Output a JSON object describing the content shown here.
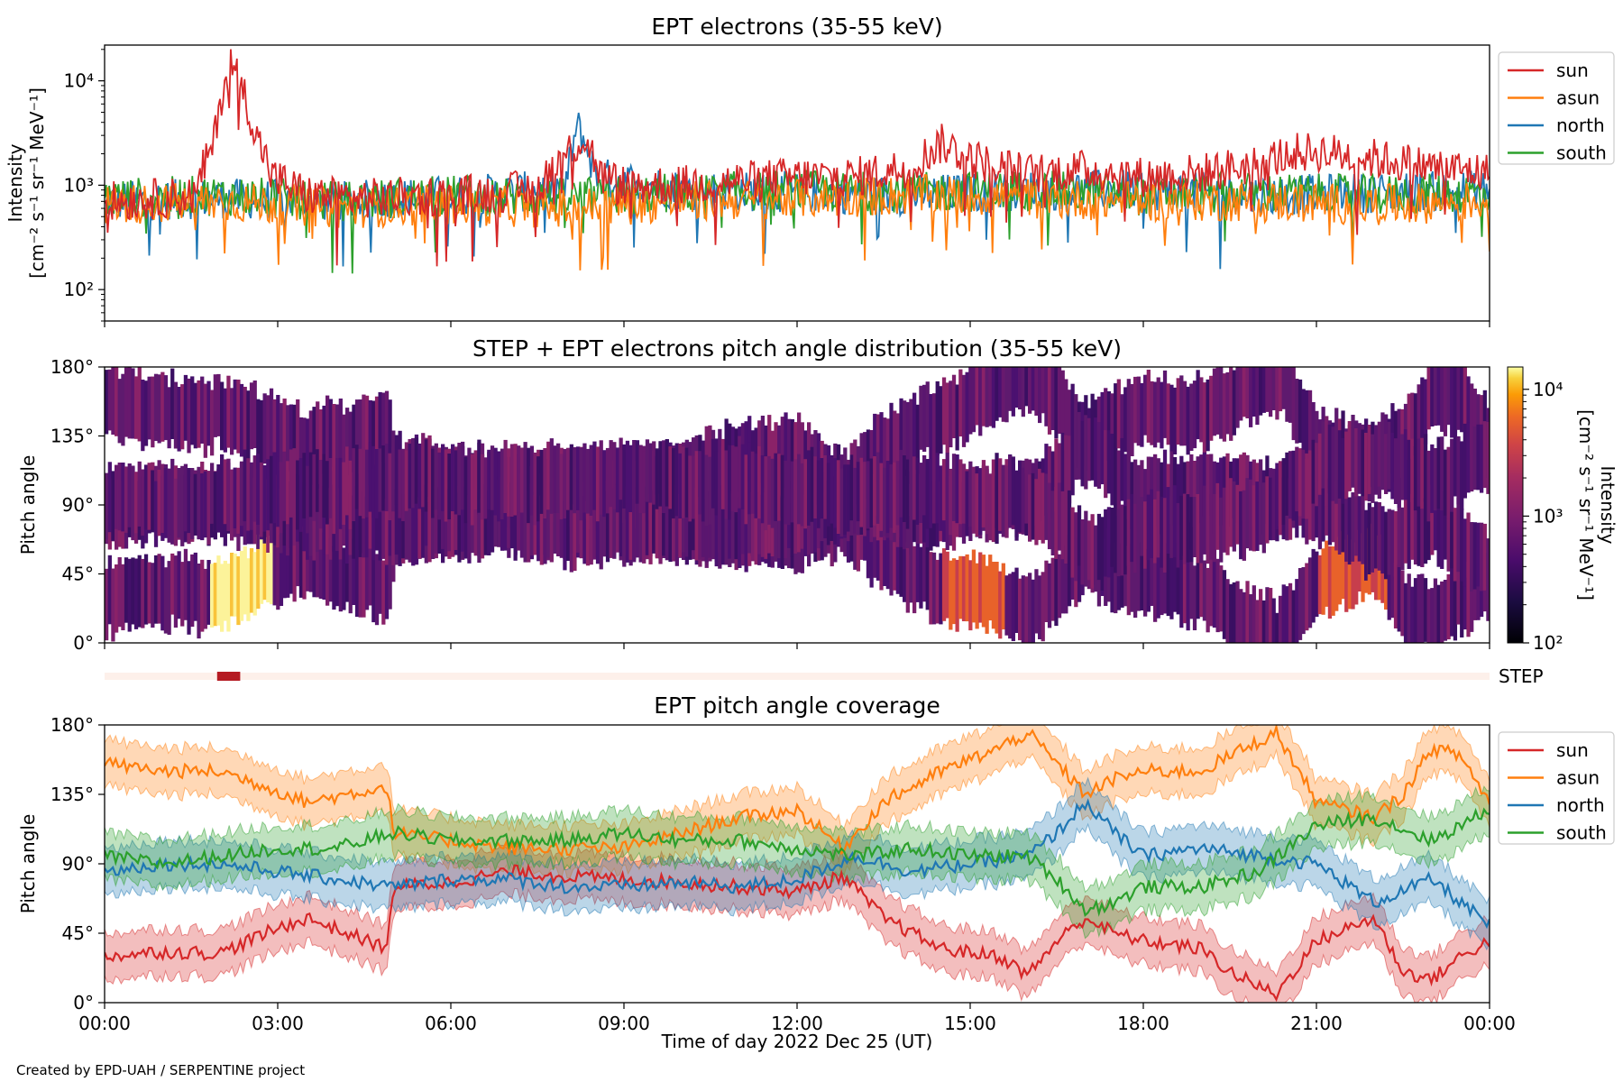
{
  "figure": {
    "credit": "Created by EPD-UAH / SERPENTINE project",
    "xlabel": "Time of day 2022 Dec 25 (UT)",
    "xticks": [
      "00:00",
      "03:00",
      "06:00",
      "09:00",
      "12:00",
      "15:00",
      "18:00",
      "21:00",
      "00:00"
    ],
    "colors": {
      "sun": "#d62728",
      "asun": "#ff7f0e",
      "north": "#1f77b4",
      "south": "#2ca02c"
    }
  },
  "chart_data": [
    {
      "type": "line",
      "title": "EPT electrons (35-55 keV)",
      "ylabel": "Intensity",
      "ylabel_units": "[cm⁻² s⁻¹ sr⁻¹ MeV⁻¹]",
      "yscale": "log",
      "ylim": [
        50,
        22000
      ],
      "yticks": [
        "10²",
        "10³",
        "10⁴"
      ],
      "legend": "outside-right",
      "legend_entries": [
        "sun",
        "asun",
        "north",
        "south"
      ],
      "x_unit": "hours UT",
      "xlim": [
        0,
        24
      ],
      "series": [
        {
          "name": "sun",
          "x": [
            0,
            1,
            1.6,
            1.9,
            2.1,
            2.2,
            2.4,
            2.6,
            2.9,
            3.5,
            4.5,
            6,
            7.5,
            8,
            8.3,
            8.6,
            9,
            10,
            11,
            12,
            13,
            14,
            14.5,
            15,
            15.5,
            16,
            17,
            18,
            19,
            20,
            20.5,
            21,
            22,
            23,
            24
          ],
          "y": [
            700,
            750,
            800,
            2500,
            10000,
            15000,
            8000,
            3000,
            1200,
            800,
            750,
            800,
            900,
            2000,
            2800,
            1200,
            1000,
            1000,
            1100,
            1200,
            1200,
            1500,
            2500,
            1800,
            1500,
            1300,
            1400,
            1200,
            1300,
            1600,
            2000,
            2100,
            1800,
            1500,
            1300
          ]
        },
        {
          "name": "asun",
          "x": [
            0,
            2,
            4,
            6,
            8,
            10,
            12,
            14,
            15,
            16,
            18,
            20,
            22,
            24
          ],
          "y": [
            650,
            700,
            600,
            650,
            600,
            700,
            750,
            800,
            800,
            750,
            700,
            700,
            650,
            700
          ]
        },
        {
          "name": "north",
          "x": [
            0,
            2,
            4,
            6,
            8,
            8.2,
            8.5,
            10,
            12,
            14,
            16,
            18,
            20,
            22,
            24
          ],
          "y": [
            700,
            750,
            700,
            800,
            900,
            3500,
            1200,
            900,
            850,
            800,
            900,
            900,
            800,
            850,
            900
          ]
        },
        {
          "name": "south",
          "x": [
            0,
            2,
            4,
            6,
            8,
            10,
            12,
            14,
            16,
            18,
            20,
            22,
            24
          ],
          "y": [
            750,
            800,
            700,
            800,
            750,
            850,
            900,
            850,
            900,
            800,
            850,
            800,
            850
          ]
        }
      ]
    },
    {
      "type": "heatmap",
      "title": "STEP + EPT electrons pitch angle distribution (35-55 keV)",
      "ylabel": "Pitch angle",
      "yticks": [
        "0°",
        "45°",
        "90°",
        "135°",
        "180°"
      ],
      "ylim": [
        0,
        180
      ],
      "xlim": [
        0,
        24
      ],
      "colorbar": {
        "label": "Intensity",
        "units": "[cm⁻² s⁻¹ sr⁻¹ MeV⁻¹]",
        "scale": "log",
        "range": [
          100,
          15000
        ],
        "ticks": [
          "10²",
          "10³",
          "10⁴"
        ],
        "colormap": "inferno"
      },
      "step_strip": {
        "label": "STEP",
        "active_from": 1.95,
        "active_to": 2.35
      }
    },
    {
      "type": "line",
      "title": "EPT pitch angle coverage",
      "ylabel": "Pitch angle",
      "yticks": [
        "0°",
        "45°",
        "90°",
        "135°",
        "180°"
      ],
      "ylim": [
        0,
        180
      ],
      "xlim": [
        0,
        24
      ],
      "legend": "outside-right",
      "legend_entries": [
        "sun",
        "asun",
        "north",
        "south"
      ],
      "band_halfwidth_deg": 15,
      "series": [
        {
          "name": "sun",
          "x": [
            0,
            1,
            2,
            2.8,
            3.5,
            4.9,
            5,
            6,
            7,
            8,
            9,
            10,
            11,
            12,
            12.8,
            13.5,
            14.5,
            15.5,
            16,
            16.5,
            17,
            17.5,
            18,
            19,
            19.5,
            20.3,
            20.7,
            21,
            22,
            22.5,
            23,
            23.5,
            24
          ],
          "y": [
            30,
            33,
            32,
            45,
            55,
            35,
            75,
            78,
            85,
            82,
            80,
            78,
            75,
            72,
            82,
            55,
            35,
            30,
            18,
            40,
            55,
            45,
            40,
            35,
            20,
            5,
            25,
            40,
            55,
            20,
            15,
            30,
            40
          ]
        },
        {
          "name": "asun",
          "x": [
            0,
            1,
            2,
            2.8,
            3.5,
            4.9,
            5,
            6,
            7,
            8,
            9,
            10,
            11,
            12,
            12.8,
            13.5,
            14.5,
            15.5,
            16,
            16.5,
            17,
            17.5,
            18,
            19,
            19.5,
            20.3,
            20.7,
            21,
            22,
            22.5,
            23,
            23.5,
            24
          ],
          "y": [
            155,
            150,
            150,
            140,
            130,
            140,
            110,
            105,
            100,
            100,
            100,
            110,
            120,
            125,
            100,
            130,
            150,
            165,
            175,
            155,
            135,
            145,
            150,
            150,
            160,
            175,
            150,
            130,
            120,
            135,
            165,
            160,
            130
          ]
        },
        {
          "name": "north",
          "x": [
            0,
            1,
            2,
            3,
            4,
            5,
            6,
            7,
            8,
            9,
            10,
            11,
            12,
            13,
            14,
            15,
            16,
            16.5,
            17,
            17.5,
            18,
            19,
            20,
            21,
            22,
            23,
            24
          ],
          "y": [
            85,
            90,
            90,
            85,
            80,
            75,
            80,
            80,
            75,
            75,
            78,
            75,
            80,
            95,
            85,
            90,
            95,
            110,
            130,
            110,
            95,
            100,
            95,
            90,
            65,
            80,
            50
          ]
        },
        {
          "name": "south",
          "x": [
            0,
            1,
            2,
            3,
            4,
            5,
            6,
            7,
            8,
            9,
            10,
            11,
            12,
            13,
            14,
            15,
            16,
            16.5,
            17,
            17.5,
            18,
            19,
            20,
            21,
            22,
            23,
            24
          ],
          "y": [
            95,
            90,
            95,
            100,
            100,
            110,
            105,
            105,
            105,
            110,
            105,
            105,
            100,
            95,
            100,
            95,
            95,
            80,
            60,
            65,
            75,
            75,
            85,
            115,
            120,
            105,
            125
          ]
        }
      ]
    }
  ]
}
